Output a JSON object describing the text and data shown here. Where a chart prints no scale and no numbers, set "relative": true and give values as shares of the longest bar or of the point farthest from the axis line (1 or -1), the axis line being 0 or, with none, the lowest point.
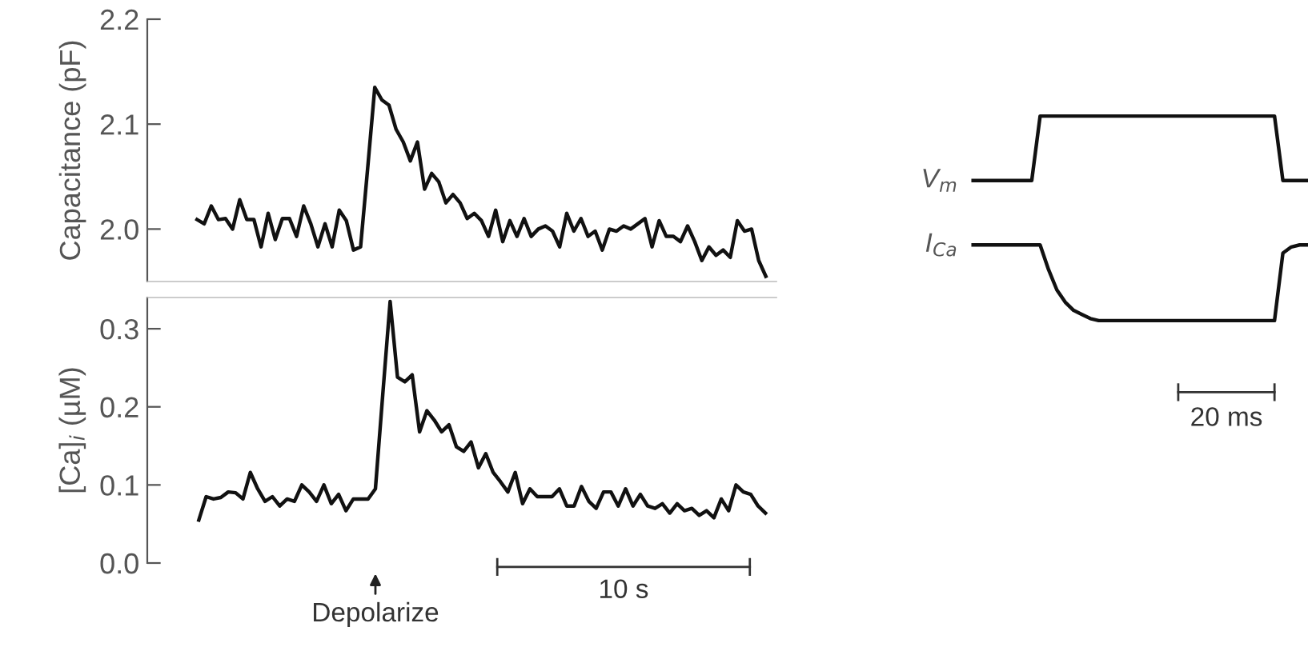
{
  "chart_data": [
    {
      "type": "line",
      "ylabel": "Capacitance (pF)",
      "tick_labels": "y",
      "grid": false,
      "line_style": "solid",
      "marker": "none",
      "categories": [
        null,
        null,
        null,
        null,
        null,
        null,
        null,
        null,
        null,
        null,
        null,
        null,
        null,
        null,
        null,
        null,
        null,
        null,
        null,
        null,
        null,
        null,
        null,
        null,
        null,
        null,
        null,
        null,
        null,
        null,
        null,
        null,
        null,
        null,
        null,
        null,
        null,
        null,
        null,
        null,
        null,
        null,
        null,
        null,
        null,
        null,
        null,
        null,
        null,
        null,
        null,
        null,
        null,
        null,
        null,
        null,
        null,
        null,
        null,
        null,
        null,
        null,
        null,
        null,
        null,
        null,
        null,
        null,
        null,
        null,
        null,
        null,
        null,
        null,
        null,
        null,
        null,
        null,
        null,
        null,
        null
      ],
      "series": [
        {
          "color": "#111111",
          "values": [
            2.009,
            2.005,
            2.022,
            2.009,
            2.01,
            2.0,
            2.028,
            2.009,
            2.009,
            1.983,
            2.015,
            1.99,
            2.01,
            2.01,
            1.993,
            2.022,
            2.005,
            1.983,
            2.005,
            1.983,
            2.018,
            2.008,
            1.98,
            1.983,
            2.058,
            2.135,
            2.123,
            2.118,
            2.095,
            2.083,
            2.065,
            2.083,
            2.038,
            2.053,
            2.045,
            2.025,
            2.033,
            2.025,
            2.01,
            2.015,
            2.008,
            1.993,
            2.018,
            1.988,
            2.008,
            1.993,
            2.01,
            1.993,
            2.0,
            2.003,
            1.998,
            1.983,
            2.015,
            1.998,
            2.01,
            1.993,
            1.998,
            1.98,
            2.0,
            1.998,
            2.003,
            2.0,
            2.005,
            2.01,
            1.983,
            2.008,
            1.993,
            1.993,
            1.988,
            2.003,
            1.988,
            1.97,
            1.983,
            1.975,
            1.98,
            1.973,
            2.008,
            1.998,
            2.0,
            1.97,
            1.955
          ]
        }
      ],
      "ylim": [
        1.95,
        2.2
      ],
      "yticks": [
        {
          "value": 2,
          "label": "2.0"
        },
        2.1,
        2.2
      ]
    },
    {
      "type": "line",
      "ylabel": "[Ca]$_{i}$ (µM)",
      "tick_labels": "y",
      "grid": false,
      "line_style": "solid",
      "marker": "none",
      "categories": [
        null,
        null,
        null,
        null,
        null,
        null,
        null,
        null,
        null,
        null,
        null,
        null,
        null,
        null,
        null,
        null,
        null,
        null,
        null,
        null,
        null,
        null,
        null,
        null,
        null,
        null,
        null,
        null,
        null,
        null,
        null,
        null,
        null,
        null,
        null,
        null,
        null,
        null,
        null,
        null,
        null,
        null,
        null,
        null,
        null,
        null,
        null,
        null,
        null,
        null,
        null,
        null,
        null,
        null,
        null,
        null,
        null,
        null,
        null,
        null,
        null,
        null,
        null,
        null,
        null,
        null,
        null,
        null,
        null,
        null,
        null,
        null,
        null,
        null,
        null,
        null,
        null,
        null
      ],
      "series": [
        {
          "color": "#111111",
          "values": [
            0.055,
            0.085,
            0.082,
            0.084,
            0.091,
            0.09,
            0.082,
            0.116,
            0.095,
            0.079,
            0.085,
            0.073,
            0.082,
            0.079,
            0.1,
            0.091,
            0.079,
            0.1,
            0.076,
            0.088,
            0.067,
            0.082,
            0.082,
            0.082,
            0.095,
            0.216,
            0.335,
            0.238,
            0.232,
            0.241,
            0.168,
            0.195,
            0.183,
            0.168,
            0.177,
            0.149,
            0.143,
            0.155,
            0.122,
            0.14,
            0.116,
            0.104,
            0.091,
            0.116,
            0.076,
            0.095,
            0.085,
            0.085,
            0.085,
            0.095,
            0.073,
            0.073,
            0.098,
            0.079,
            0.07,
            0.091,
            0.091,
            0.073,
            0.095,
            0.073,
            0.088,
            0.073,
            0.07,
            0.076,
            0.064,
            0.076,
            0.067,
            0.07,
            0.061,
            0.067,
            0.058,
            0.082,
            0.067,
            0.1,
            0.091,
            0.088,
            0.073,
            0.064
          ]
        }
      ],
      "ylim": [
        0,
        0.34
      ],
      "yticks": [
        {
          "value": 0,
          "label": "0.0"
        },
        0.1,
        0.2,
        0.3
      ],
      "annotations": [
        "Depolarize",
        "10 s"
      ]
    },
    {
      "type": "line",
      "relative": true,
      "tick_labels": false,
      "grid": false,
      "line_style": "solid",
      "marker": "none",
      "categories": [
        null,
        null,
        null,
        null,
        null,
        null,
        null,
        null,
        null,
        null,
        null,
        null,
        null,
        null,
        null,
        null,
        null,
        null,
        null,
        null,
        null,
        null,
        null,
        null,
        null,
        null,
        null,
        null,
        null,
        null,
        null,
        null,
        null,
        null,
        null,
        null,
        null,
        null,
        null,
        null,
        null
      ],
      "series": [
        {
          "name": "V$_{m}$",
          "color": "#111111",
          "values": [
            0.685,
            0.685,
            0.685,
            0.685,
            0.685,
            0.685,
            0.685,
            0.685,
            1,
            1,
            1,
            1,
            1,
            1,
            1,
            1,
            1,
            1,
            1,
            1,
            1,
            1,
            1,
            1,
            1,
            1,
            1,
            1,
            1,
            1,
            1,
            1,
            1,
            1,
            1,
            1,
            1,
            0.685,
            0.685,
            0.685,
            0.685
          ]
        },
        {
          "name": "I$_{Ca}$",
          "color": "#111111",
          "values": [
            0.37,
            0.37,
            0.37,
            0.37,
            0.37,
            0.37,
            0.37,
            0.37,
            0.37,
            0.25,
            0.15,
            0.09,
            0.05,
            0.03,
            0.01,
            0,
            0,
            0,
            0,
            0,
            0,
            0,
            0,
            0,
            0,
            0,
            0,
            0,
            0,
            0,
            0,
            0,
            0,
            0,
            0,
            0,
            0,
            0.33,
            0.36,
            0.37,
            0.37
          ]
        }
      ],
      "annotations": [
        "20 ms"
      ]
    }
  ]
}
